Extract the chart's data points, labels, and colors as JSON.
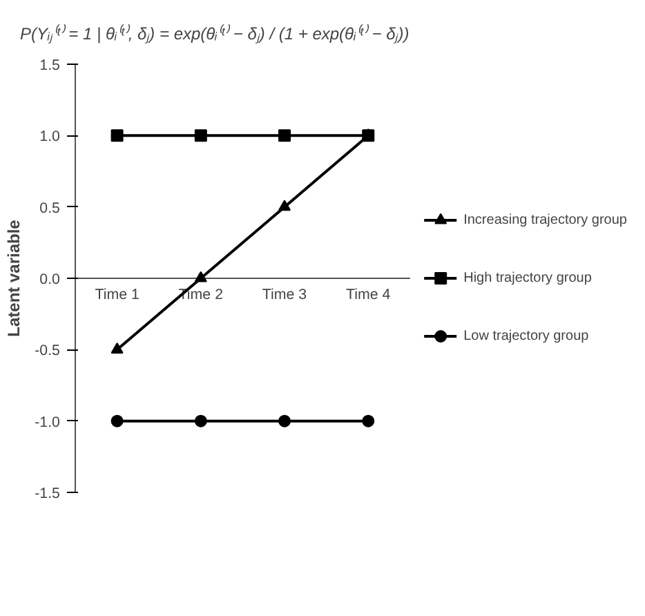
{
  "chart_data": {
    "type": "line",
    "ylabel": "Latent variable",
    "categories": [
      "Time 1",
      "Time 2",
      "Time 3",
      "Time 4"
    ],
    "series": [
      {
        "name": "Increasing trajectory group",
        "color": "#000000",
        "marker": "triangle",
        "values": [
          -0.5,
          0,
          0.5,
          1
        ]
      },
      {
        "name": "High trajectory group",
        "color": "#000000",
        "marker": "square",
        "values": [
          1,
          1,
          1,
          1
        ]
      },
      {
        "name": "Low trajectory group",
        "color": "#000000",
        "marker": "circle",
        "values": [
          -1,
          -1,
          -1,
          -1
        ]
      }
    ],
    "ylim": [
      -1.5,
      1.5
    ],
    "yticks": [
      {
        "value": -1.5,
        "label": "-1.5"
      },
      {
        "value": -1,
        "label": "-1.0"
      },
      {
        "value": -0.5,
        "label": "-0.5"
      },
      {
        "value": 0,
        "label": "0.0"
      },
      {
        "value": 0.5,
        "label": "0.5"
      },
      {
        "value": 1,
        "label": "1.0"
      },
      {
        "value": 1.5,
        "label": "1.5"
      }
    ],
    "grid": false,
    "legend": "right",
    "line_style": "solid",
    "annotations": [
      "P(Yᵢⱼ⁽ᵗ⁾ = 1 | θᵢ⁽ᵗ⁾, δⱼ) = exp(θᵢ⁽ᵗ⁾ − δⱼ) / (1 + exp(θᵢ⁽ᵗ⁾ − δⱼ))"
    ]
  }
}
